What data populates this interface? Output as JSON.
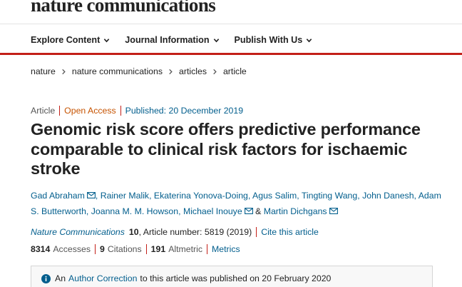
{
  "brand": "nature communications",
  "nav": {
    "items": [
      {
        "label": "Explore Content"
      },
      {
        "label": "Journal Information"
      },
      {
        "label": "Publish With Us"
      }
    ]
  },
  "breadcrumb": [
    "nature",
    "nature communications",
    "articles",
    "article"
  ],
  "meta": {
    "type": "Article",
    "access": "Open Access",
    "published": "Published: 20 December 2019"
  },
  "title": "Genomic risk score offers predictive performance comparable to clinical risk factors for ischaemic stroke",
  "authors": [
    "Gad Abraham",
    "Rainer Malik",
    "Ekaterina Yonova-Doing",
    "Agus Salim",
    "Tingting Wang",
    "John Danesh",
    "Adam S. Butterworth",
    "Joanna M. M. Howson",
    "Michael Inouye",
    "Martin Dichgans"
  ],
  "authors_and": "&",
  "citation": {
    "journal": "Nature Communications",
    "volume": "10",
    "article_number": ", Article number: 5819 (2019)",
    "cite_link": "Cite this article"
  },
  "metrics": {
    "accesses_value": "8314",
    "accesses_label": "Accesses",
    "citations_value": "9",
    "citations_label": "Citations",
    "altmetric_value": "191",
    "altmetric_label": "Altmetric",
    "metrics_link": "Metrics"
  },
  "notice": {
    "prefix": "An",
    "link": "Author Correction",
    "suffix": "to this article was published on 20 February 2020"
  },
  "colors": {
    "accent_red": "#c31f18",
    "link_blue": "#025e8d",
    "open_access_orange": "#c65301"
  }
}
